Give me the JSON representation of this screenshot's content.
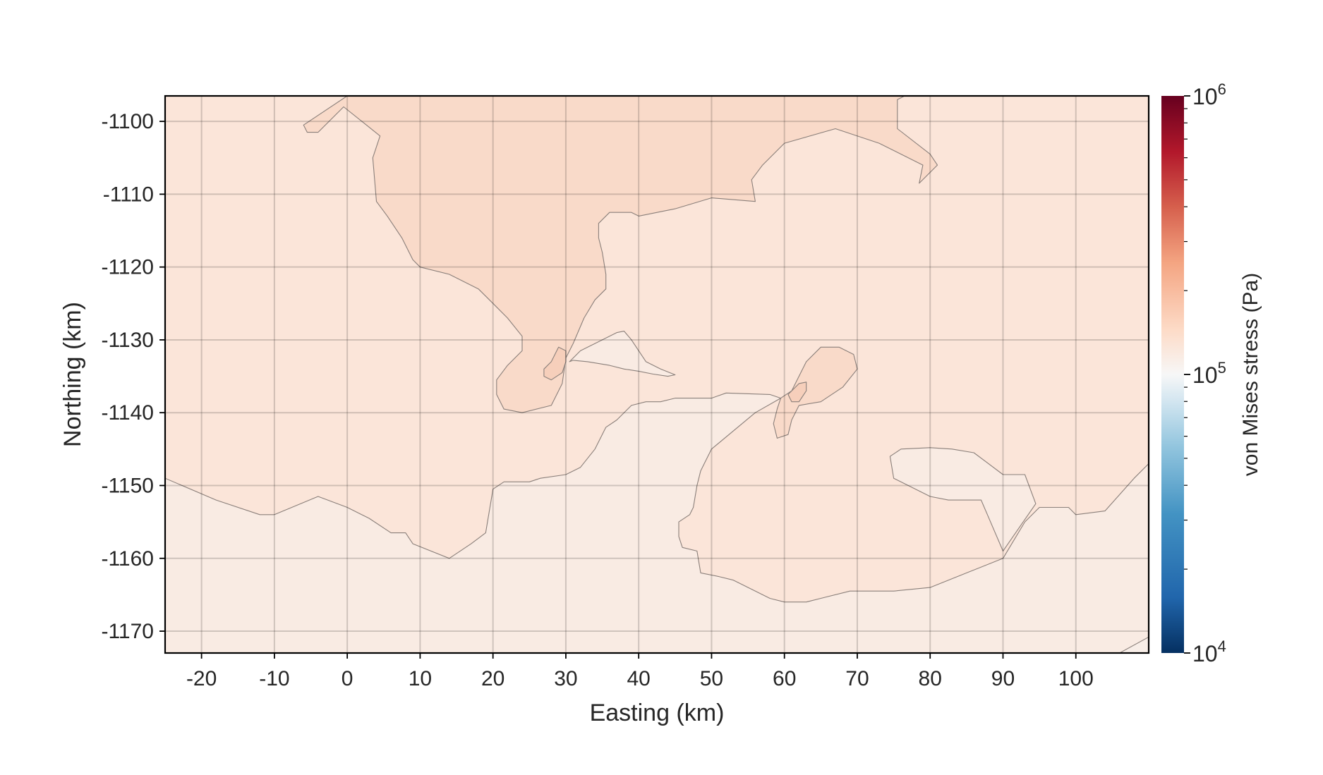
{
  "chart_data": {
    "type": "heatmap",
    "subtype": "filled-contour-map",
    "title": "",
    "xlabel": "Easting (km)",
    "ylabel": "Northing (km)",
    "xlim": [
      -25,
      110
    ],
    "ylim": [
      -1173,
      -1096.5
    ],
    "xticks": [
      -20,
      -10,
      0,
      10,
      20,
      30,
      40,
      50,
      60,
      70,
      80,
      90,
      100
    ],
    "yticks": [
      -1100,
      -1110,
      -1120,
      -1130,
      -1140,
      -1150,
      -1160,
      -1170
    ],
    "xtick_labels": [
      "-20",
      "-10",
      "0",
      "10",
      "20",
      "30",
      "40",
      "50",
      "60",
      "70",
      "80",
      "90",
      "100"
    ],
    "ytick_labels": [
      "-1100",
      "-1110",
      "-1120",
      "-1130",
      "-1140",
      "-1150",
      "-1160",
      "-1170"
    ],
    "grid": true,
    "colorbar": {
      "label": "von Mises stress (Pa)",
      "scale": "log",
      "colormap": "RdBu_r",
      "range": [
        10000,
        1000000
      ],
      "ticks": [
        {
          "value": 10000,
          "base": "10",
          "exp": "4"
        },
        {
          "value": 100000,
          "base": "10",
          "exp": "5"
        },
        {
          "value": 1000000,
          "base": "10",
          "exp": "6"
        }
      ]
    },
    "contour_regions": [
      {
        "name": "background",
        "level_pa": 150000,
        "color": "#fbe5d9",
        "polygons": [
          [
            [
              -25,
              -1096.5
            ],
            [
              110,
              -1096.5
            ],
            [
              110,
              -1173
            ],
            [
              -25,
              -1173
            ]
          ]
        ]
      },
      {
        "name": "northern-high",
        "level_pa": 200000,
        "color": "#f9dac9",
        "polygons": [
          [
            [
              -6,
              -1100.5
            ],
            [
              0,
              -1096.5
            ],
            [
              76.5,
              -1096.5
            ],
            [
              75.5,
              -1097
            ],
            [
              75.5,
              -1101
            ],
            [
              80,
              -1104.5
            ],
            [
              81,
              -1106
            ],
            [
              78.5,
              -1108.5
            ],
            [
              79,
              -1106
            ],
            [
              73,
              -1103
            ],
            [
              67,
              -1101
            ],
            [
              60,
              -1103
            ],
            [
              57,
              -1106
            ],
            [
              55.5,
              -1108
            ],
            [
              56,
              -1111
            ],
            [
              50,
              -1110.5
            ],
            [
              45,
              -1112
            ],
            [
              40,
              -1113
            ],
            [
              39,
              -1112.5
            ],
            [
              36,
              -1112.5
            ],
            [
              34.5,
              -1114
            ],
            [
              34.5,
              -1116
            ],
            [
              35,
              -1118
            ],
            [
              35.5,
              -1121
            ],
            [
              35.5,
              -1123
            ],
            [
              34,
              -1124.5
            ],
            [
              32.5,
              -1127
            ],
            [
              31,
              -1130.5
            ],
            [
              30,
              -1132.5
            ],
            [
              29.5,
              -1136
            ],
            [
              28,
              -1139
            ],
            [
              24,
              -1140
            ],
            [
              21.5,
              -1139.5
            ],
            [
              20.5,
              -1137.5
            ],
            [
              20.5,
              -1135.5
            ],
            [
              22,
              -1133.5
            ],
            [
              24,
              -1131.5
            ],
            [
              24,
              -1129.5
            ],
            [
              22,
              -1127
            ],
            [
              20,
              -1125
            ],
            [
              18,
              -1123
            ],
            [
              14,
              -1121
            ],
            [
              10,
              -1120
            ],
            [
              9,
              -1119
            ],
            [
              7.5,
              -1116
            ],
            [
              5.5,
              -1113
            ],
            [
              4,
              -1111
            ],
            [
              3.5,
              -1105
            ],
            [
              4.5,
              -1102
            ],
            [
              2,
              -1100
            ],
            [
              -0.5,
              -1098
            ],
            [
              -4,
              -1101.5
            ],
            [
              -5.5,
              -1101.5
            ]
          ]
        ]
      },
      {
        "name": "mid-right-high",
        "level_pa": 200000,
        "color": "#f9dac9",
        "polygons": [
          [
            [
              61,
              -1137
            ],
            [
              63,
              -1133
            ],
            [
              65,
              -1131
            ],
            [
              67.5,
              -1131
            ],
            [
              69.5,
              -1132
            ],
            [
              70,
              -1134
            ],
            [
              68,
              -1136.5
            ],
            [
              65,
              -1138.5
            ],
            [
              62,
              -1139
            ],
            [
              61,
              -1141
            ],
            [
              60.5,
              -1143
            ],
            [
              59,
              -1143.5
            ],
            [
              58.5,
              -1141.5
            ],
            [
              59,
              -1139.5
            ],
            [
              59.5,
              -1138
            ]
          ]
        ]
      },
      {
        "name": "lower-band",
        "level_pa": 120000,
        "color": "#f9ebe3",
        "polygons": [
          [
            [
              -25,
              -1149
            ],
            [
              -18,
              -1152
            ],
            [
              -12,
              -1154
            ],
            [
              -10,
              -1154
            ],
            [
              -4,
              -1151.5
            ],
            [
              0,
              -1153
            ],
            [
              3,
              -1154.5
            ],
            [
              6,
              -1156.5
            ],
            [
              8,
              -1156.5
            ],
            [
              9,
              -1158
            ],
            [
              14,
              -1160
            ],
            [
              17,
              -1158
            ],
            [
              19,
              -1156.5
            ],
            [
              20,
              -1150.5
            ],
            [
              21.5,
              -1149.5
            ],
            [
              23.5,
              -1149.5
            ],
            [
              25,
              -1149.5
            ],
            [
              26.5,
              -1149
            ],
            [
              30,
              -1148.5
            ],
            [
              32,
              -1147.5
            ],
            [
              34,
              -1145
            ],
            [
              35.5,
              -1142
            ],
            [
              37,
              -1141
            ],
            [
              39,
              -1139
            ],
            [
              41,
              -1138.5
            ],
            [
              43,
              -1138.5
            ],
            [
              45,
              -1138
            ],
            [
              50,
              -1138
            ],
            [
              52,
              -1137.3
            ],
            [
              58,
              -1137.5
            ],
            [
              59.5,
              -1138
            ],
            [
              56,
              -1140
            ],
            [
              50,
              -1145
            ],
            [
              48.5,
              -1148
            ],
            [
              48,
              -1150
            ],
            [
              47.5,
              -1153
            ],
            [
              47,
              -1154
            ],
            [
              45.5,
              -1155
            ],
            [
              45.5,
              -1157
            ],
            [
              46,
              -1158.5
            ],
            [
              48,
              -1159
            ],
            [
              48.5,
              -1162
            ],
            [
              51,
              -1162.5
            ],
            [
              53,
              -1163
            ],
            [
              54,
              -1163.5
            ],
            [
              58,
              -1165.5
            ],
            [
              60,
              -1166
            ],
            [
              63,
              -1166
            ],
            [
              65,
              -1165.5
            ],
            [
              69,
              -1164.5
            ],
            [
              75,
              -1164.5
            ],
            [
              80,
              -1164
            ],
            [
              85,
              -1162
            ],
            [
              90,
              -1160
            ],
            [
              93,
              -1155
            ],
            [
              95,
              -1153
            ],
            [
              99,
              -1153
            ],
            [
              100,
              -1154
            ],
            [
              104,
              -1153.5
            ],
            [
              108,
              -1149
            ],
            [
              110,
              -1147
            ],
            [
              110,
              -1173
            ],
            [
              -25,
              -1173
            ]
          ],
          [
            [
              74.5,
              -1146
            ],
            [
              76,
              -1145
            ],
            [
              80,
              -1144.8
            ],
            [
              83,
              -1145
            ],
            [
              86,
              -1145.5
            ],
            [
              90,
              -1148.5
            ],
            [
              93,
              -1148.5
            ],
            [
              94.5,
              -1152.5
            ],
            [
              90,
              -1159
            ],
            [
              87,
              -1152
            ],
            [
              82.5,
              -1152
            ],
            [
              80,
              -1151.5
            ],
            [
              75,
              -1149
            ]
          ],
          [
            [
              30.5,
              -1133
            ],
            [
              32,
              -1131.5
            ],
            [
              34,
              -1130.5
            ],
            [
              36,
              -1129.5
            ],
            [
              37,
              -1129
            ],
            [
              38,
              -1128.8
            ],
            [
              39,
              -1130
            ],
            [
              40,
              -1131.5
            ],
            [
              41,
              -1133
            ],
            [
              43,
              -1134
            ],
            [
              45,
              -1134.8
            ],
            [
              44,
              -1135
            ],
            [
              42,
              -1134.7
            ],
            [
              40,
              -1134.3
            ],
            [
              38,
              -1134
            ],
            [
              36,
              -1133.5
            ],
            [
              33,
              -1133
            ],
            [
              31,
              -1132.8
            ]
          ]
        ]
      },
      {
        "name": "lower-right-low",
        "level_pa": 100000,
        "color": "#f8eee8",
        "polygons": [
          [
            [
              106,
              -1173
            ],
            [
              110,
              -1170.8
            ],
            [
              110,
              -1173
            ]
          ]
        ]
      },
      {
        "name": "peak-left",
        "level_pa": 300000,
        "color": "#f6cfbb",
        "polygons": [
          [
            [
              29,
              -1131
            ],
            [
              30,
              -1131.5
            ],
            [
              30,
              -1133
            ],
            [
              29.5,
              -1134.5
            ],
            [
              28,
              -1135.5
            ],
            [
              27,
              -1135
            ],
            [
              27,
              -1134
            ],
            [
              28,
              -1133
            ]
          ]
        ]
      },
      {
        "name": "peak-right",
        "level_pa": 300000,
        "color": "#f6cfbb",
        "polygons": [
          [
            [
              62,
              -1136
            ],
            [
              63,
              -1135.8
            ],
            [
              63,
              -1137
            ],
            [
              62,
              -1138.5
            ],
            [
              61,
              -1138.5
            ],
            [
              60.5,
              -1137.5
            ]
          ]
        ]
      }
    ]
  }
}
